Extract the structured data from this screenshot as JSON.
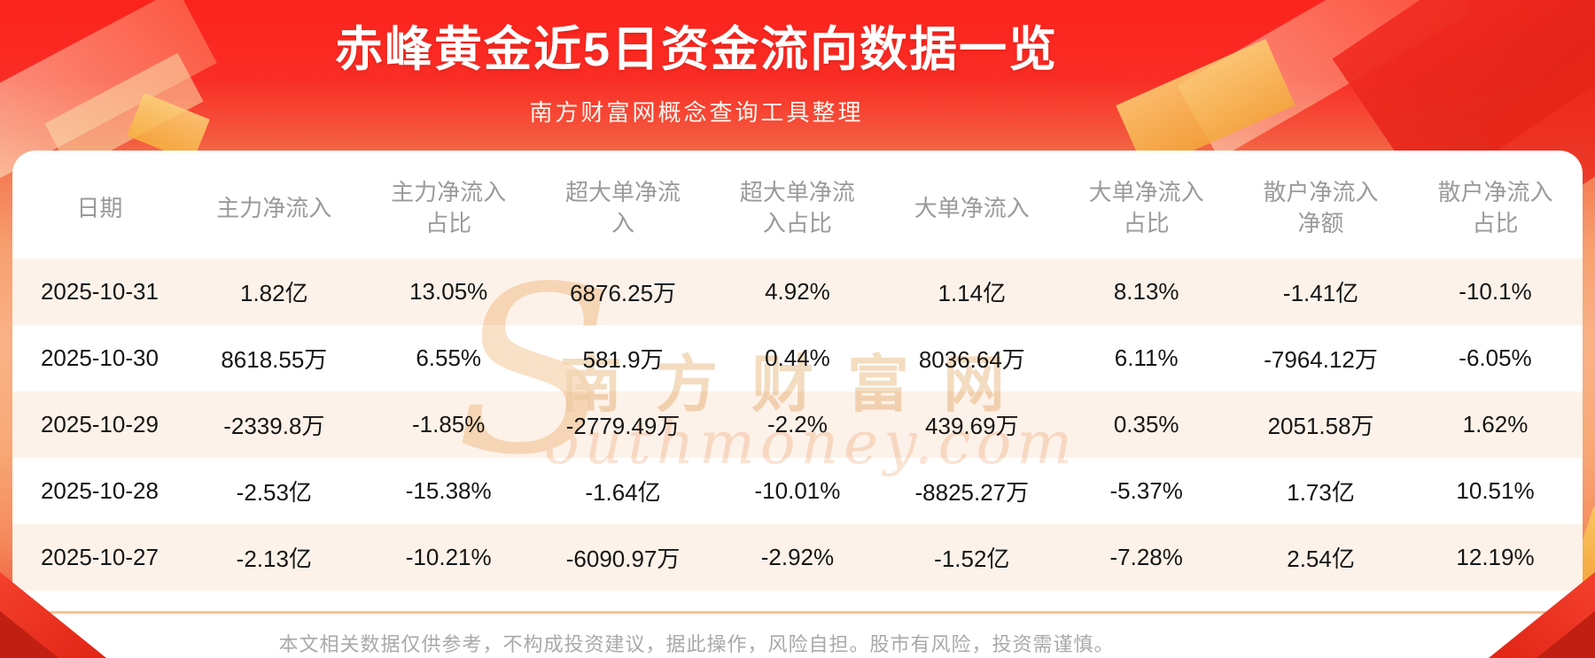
{
  "header": {
    "title": "赤峰黄金近5日资金流向数据一览",
    "subtitle": "南方财富网概念查询工具整理"
  },
  "table": {
    "headers": [
      "日期",
      "主力净流入",
      "主力净流入\n占比",
      "超大单净流\n入",
      "超大单净流\n入占比",
      "大单净流入",
      "大单净流入\n占比",
      "散户净流入\n净额",
      "散户净流入\n占比"
    ],
    "rows": [
      [
        "2025-10-31",
        "1.82亿",
        "13.05%",
        "6876.25万",
        "4.92%",
        "1.14亿",
        "8.13%",
        "-1.41亿",
        "-10.1%"
      ],
      [
        "2025-10-30",
        "8618.55万",
        "6.55%",
        "581.9万",
        "0.44%",
        "8036.64万",
        "6.11%",
        "-7964.12万",
        "-6.05%"
      ],
      [
        "2025-10-29",
        "-2339.8万",
        "-1.85%",
        "-2779.49万",
        "-2.2%",
        "439.69万",
        "0.35%",
        "2051.58万",
        "1.62%"
      ],
      [
        "2025-10-28",
        "-2.53亿",
        "-15.38%",
        "-1.64亿",
        "-10.01%",
        "-8825.27万",
        "-5.37%",
        "1.73亿",
        "10.51%"
      ],
      [
        "2025-10-27",
        "-2.13亿",
        "-10.21%",
        "-6090.97万",
        "-2.92%",
        "-1.52亿",
        "-7.28%",
        "2.54亿",
        "12.19%"
      ]
    ]
  },
  "watermark": {
    "initial": "S",
    "cn": "南方财富网",
    "en": "outhmoney.com"
  },
  "footer": {
    "disclaimer": "本文相关数据仅供参考，不构成投资建议，据此操作，风险自担。股市有风险，投资需谨慎。"
  },
  "colors": {
    "background_red": "#fa241d",
    "background_peach": "#f9b286",
    "card": "#ffffff",
    "row_stripe": "#fdf2e9",
    "header_text": "#9a9a9a",
    "data_text": "#151515",
    "divider": "#f6c491",
    "watermark_tan": "#f2d6b4",
    "disclaimer_text": "#a9a9a9",
    "title_text": "#ffffff"
  },
  "chart_data": {
    "type": "table",
    "title": "赤峰黄金近5日资金流向数据一览",
    "columns": [
      "日期",
      "主力净流入",
      "主力净流入占比",
      "超大单净流入",
      "超大单净流入占比",
      "大单净流入",
      "大单净流入占比",
      "散户净流入净额",
      "散户净流入占比"
    ],
    "rows": [
      [
        "2025-10-31",
        "1.82亿",
        "13.05%",
        "6876.25万",
        "4.92%",
        "1.14亿",
        "8.13%",
        "-1.41亿",
        "-10.1%"
      ],
      [
        "2025-10-30",
        "8618.55万",
        "6.55%",
        "581.9万",
        "0.44%",
        "8036.64万",
        "6.11%",
        "-7964.12万",
        "-6.05%"
      ],
      [
        "2025-10-29",
        "-2339.8万",
        "-1.85%",
        "-2779.49万",
        "-2.2%",
        "439.69万",
        "0.35%",
        "2051.58万",
        "1.62%"
      ],
      [
        "2025-10-28",
        "-2.53亿",
        "-15.38%",
        "-1.64亿",
        "-10.01%",
        "-8825.27万",
        "-5.37%",
        "1.73亿",
        "10.51%"
      ],
      [
        "2025-10-27",
        "-2.13亿",
        "-10.21%",
        "-6090.97万",
        "-2.92%",
        "-1.52亿",
        "-7.28%",
        "2.54亿",
        "12.19%"
      ]
    ]
  }
}
